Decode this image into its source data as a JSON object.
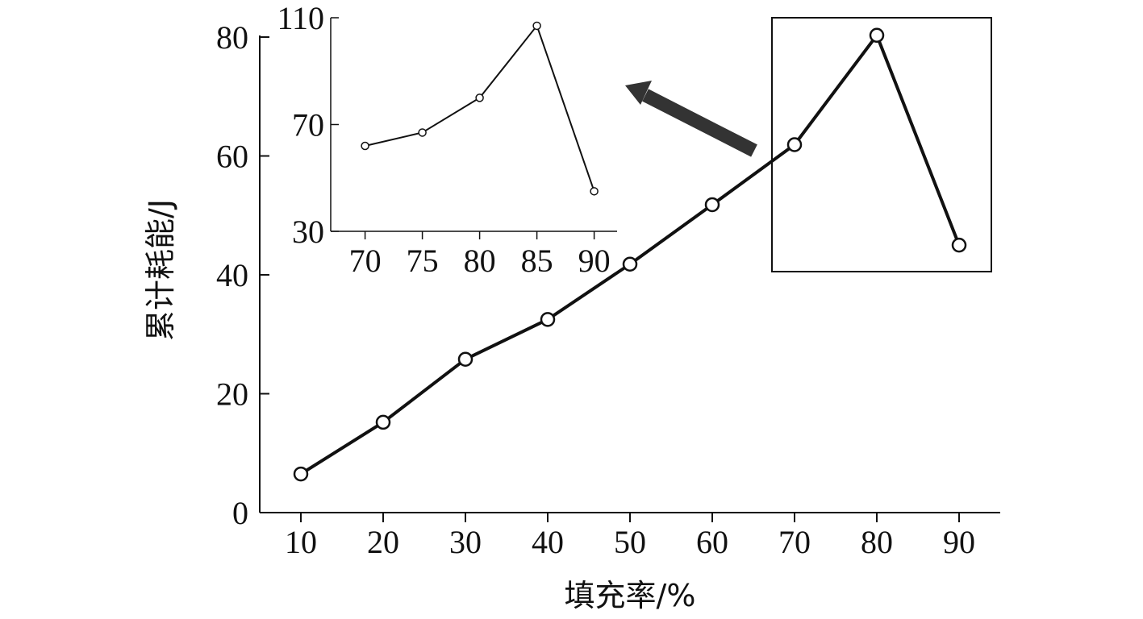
{
  "chart_data": [
    {
      "type": "line",
      "xlabel": "填充率/%",
      "ylabel": "累计耗能/J",
      "x": [
        10,
        20,
        30,
        40,
        50,
        60,
        70,
        80,
        90
      ],
      "series": [
        {
          "values": [
            6.5,
            15.2,
            25.8,
            32.5,
            41.8,
            51.8,
            61.9,
            80.3,
            45.0
          ]
        }
      ],
      "xlim": [
        5,
        95
      ],
      "ylim": [
        0,
        80
      ],
      "xticks": [
        "10",
        "20",
        "30",
        "40",
        "50",
        "60",
        "70",
        "80",
        "90"
      ],
      "yticks": [
        "0",
        "20",
        "40",
        "60",
        "80"
      ],
      "grid": false,
      "annotations": [
        "rectangle around x 70–90 region",
        "arrow pointing to inset"
      ]
    },
    {
      "type": "line",
      "x": [
        70,
        75,
        80,
        85,
        90
      ],
      "series": [
        {
          "values": [
            62,
            67,
            80,
            107,
            45
          ]
        }
      ],
      "xlim": [
        67,
        92
      ],
      "ylim": [
        30,
        110
      ],
      "xticks": [
        "70",
        "75",
        "80",
        "85",
        "90"
      ],
      "yticks": [
        "30",
        "70",
        "110"
      ],
      "grid": false
    }
  ]
}
